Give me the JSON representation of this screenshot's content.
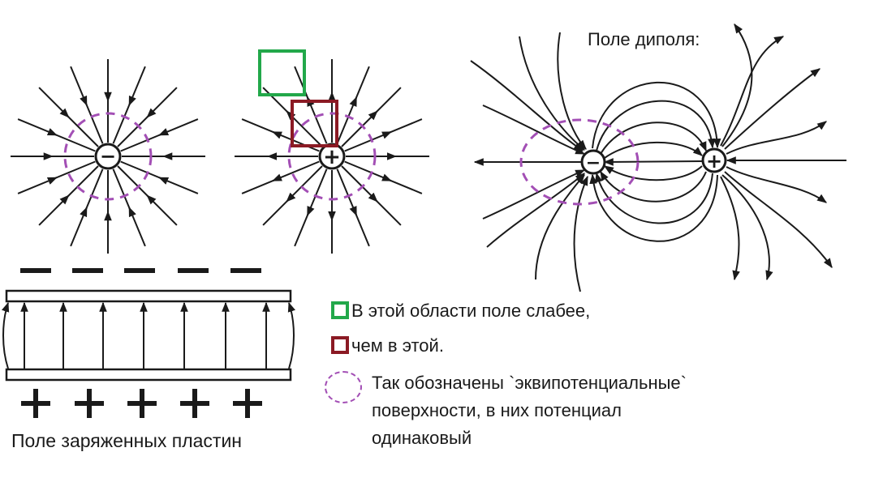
{
  "labels": {
    "dipole_title": "Поле диполя:",
    "plates_title": "Поле заряженных пластин"
  },
  "charges": {
    "negative_sign": "−",
    "positive_sign": "+"
  },
  "legend": {
    "green_text": "В этой области поле слабее,",
    "red_text": "чем в этой.",
    "equipotential_line1": "Так обозначены `эквипотенциальные`",
    "equipotential_line2": "поверхности, в них потенциал",
    "equipotential_line3": "одинаковый"
  },
  "colors": {
    "line": "#1a1a1a",
    "equipotential": "#a34fb5",
    "weak_field_box": "#22a84a",
    "strong_field_box": "#8b1a24"
  },
  "icons": {
    "field_line": "arrow",
    "charge": "circle-with-sign",
    "equipotential": "dashed-circle"
  }
}
